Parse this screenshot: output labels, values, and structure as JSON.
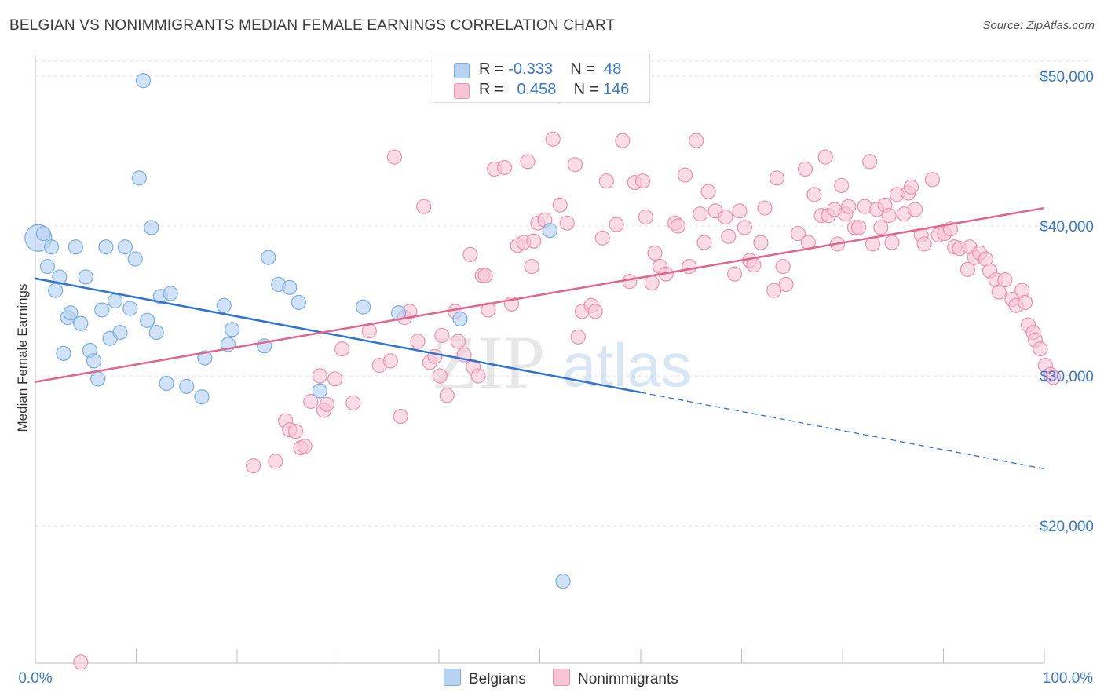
{
  "title": "BELGIAN VS NONIMMIGRANTS MEDIAN FEMALE EARNINGS CORRELATION CHART",
  "source": "Source: ZipAtlas.com",
  "watermark": {
    "zip": "ZIP",
    "atlas": "atlas"
  },
  "legend": {
    "r_label": "R =",
    "n_label": "N =",
    "belgians": {
      "r": "-0.333",
      "n": "48"
    },
    "nonimmigrants": {
      "r": "0.458",
      "n": "146"
    }
  },
  "colors": {
    "belgians_fill": "#b7d3f2",
    "belgians_stroke": "#7aaee0",
    "belgians_line": "#2f72d0",
    "nonimmigrants_fill": "#f7c5d5",
    "nonimmigrants_stroke": "#ec92b0",
    "nonimmigrants_line": "#e0668f",
    "axis_label": "#3a78c9",
    "grid": "#e3e3e3"
  },
  "chart_data": {
    "type": "scatter",
    "title": "BELGIAN VS NONIMMIGRANTS MEDIAN FEMALE EARNINGS CORRELATION CHART",
    "xlabel": "",
    "ylabel": "Median Female Earnings",
    "xlim": [
      0,
      100
    ],
    "ylim": [
      10000,
      51500
    ],
    "x_tick_labels": [
      "0.0%",
      "100.0%"
    ],
    "y_ticks": [
      20000,
      30000,
      40000,
      50000
    ],
    "y_tick_labels": [
      "$20,000",
      "$30,000",
      "$40,000",
      "$50,000"
    ],
    "grid": true,
    "legend_position": "top-center",
    "series": [
      {
        "name": "Belgians",
        "trend": {
          "x": [
            0,
            60
          ],
          "y": [
            36500,
            28900
          ],
          "dashed_to": [
            100,
            23800
          ]
        },
        "points": [
          [
            0.3,
            39200
          ],
          [
            0.8,
            39500
          ],
          [
            1.2,
            37300
          ],
          [
            1.6,
            38600
          ],
          [
            2,
            35700
          ],
          [
            2.4,
            36600
          ],
          [
            2.8,
            31500
          ],
          [
            3.2,
            33900
          ],
          [
            3.5,
            34200
          ],
          [
            4,
            38600
          ],
          [
            4.5,
            33500
          ],
          [
            5,
            36600
          ],
          [
            5.4,
            31700
          ],
          [
            5.8,
            31000
          ],
          [
            6.2,
            29800
          ],
          [
            6.6,
            34400
          ],
          [
            7,
            38600
          ],
          [
            7.4,
            32500
          ],
          [
            7.9,
            35000
          ],
          [
            8.4,
            32900
          ],
          [
            8.9,
            38600
          ],
          [
            9.4,
            34500
          ],
          [
            9.9,
            37800
          ],
          [
            10.3,
            43200
          ],
          [
            10.7,
            49700
          ],
          [
            11.1,
            33700
          ],
          [
            11.5,
            39900
          ],
          [
            12,
            32900
          ],
          [
            12.4,
            35300
          ],
          [
            13,
            29500
          ],
          [
            13.4,
            35500
          ],
          [
            15,
            29300
          ],
          [
            16.5,
            28600
          ],
          [
            16.8,
            31200
          ],
          [
            18.7,
            34700
          ],
          [
            19.1,
            32100
          ],
          [
            19.5,
            33100
          ],
          [
            22.7,
            32000
          ],
          [
            23.1,
            37900
          ],
          [
            24.1,
            36100
          ],
          [
            25.2,
            35900
          ],
          [
            26.1,
            34900
          ],
          [
            28.2,
            29000
          ],
          [
            32.5,
            34600
          ],
          [
            36,
            34200
          ],
          [
            42.1,
            33800
          ],
          [
            51,
            39700
          ],
          [
            52.3,
            16300
          ]
        ]
      },
      {
        "name": "Nonimmigrants",
        "trend": {
          "x": [
            0,
            100
          ],
          "y": [
            29600,
            41200
          ]
        },
        "points": [
          [
            4.5,
            10900
          ],
          [
            21.6,
            24000
          ],
          [
            23.8,
            24300
          ],
          [
            24.8,
            27000
          ],
          [
            25.2,
            26400
          ],
          [
            25.8,
            26300
          ],
          [
            26.3,
            25200
          ],
          [
            26.7,
            25300
          ],
          [
            27.3,
            28300
          ],
          [
            28.2,
            30000
          ],
          [
            28.6,
            27700
          ],
          [
            28.9,
            28100
          ],
          [
            29.7,
            29800
          ],
          [
            30.4,
            31800
          ],
          [
            31.5,
            28200
          ],
          [
            33.1,
            33000
          ],
          [
            34.1,
            30700
          ],
          [
            35.2,
            31000
          ],
          [
            35.6,
            44600
          ],
          [
            36.2,
            27300
          ],
          [
            36.6,
            33900
          ],
          [
            37.1,
            34300
          ],
          [
            37.9,
            32300
          ],
          [
            38.5,
            41300
          ],
          [
            39.1,
            30900
          ],
          [
            39.6,
            31300
          ],
          [
            40.1,
            30000
          ],
          [
            40.3,
            32700
          ],
          [
            40.8,
            28700
          ],
          [
            41.6,
            34300
          ],
          [
            41.9,
            32300
          ],
          [
            42.5,
            31400
          ],
          [
            43.1,
            38100
          ],
          [
            43.4,
            30600
          ],
          [
            43.9,
            30000
          ],
          [
            44.3,
            36700
          ],
          [
            44.6,
            36700
          ],
          [
            44.9,
            34400
          ],
          [
            45.5,
            43800
          ],
          [
            46.5,
            43900
          ],
          [
            47.2,
            34800
          ],
          [
            47.8,
            38700
          ],
          [
            48.4,
            38900
          ],
          [
            48.8,
            44300
          ],
          [
            49.2,
            37300
          ],
          [
            49.4,
            39000
          ],
          [
            49.8,
            40200
          ],
          [
            50.5,
            40400
          ],
          [
            51.3,
            45800
          ],
          [
            51.9,
            48700
          ],
          [
            52,
            41400
          ],
          [
            52.7,
            40200
          ],
          [
            53.5,
            44100
          ],
          [
            53.8,
            32600
          ],
          [
            54.2,
            34300
          ],
          [
            55.1,
            34700
          ],
          [
            55.5,
            34300
          ],
          [
            56.2,
            39200
          ],
          [
            56.6,
            43000
          ],
          [
            57.6,
            40100
          ],
          [
            58.2,
            45700
          ],
          [
            58.9,
            36300
          ],
          [
            59.4,
            42900
          ],
          [
            60.2,
            43000
          ],
          [
            60.5,
            40600
          ],
          [
            61.1,
            36200
          ],
          [
            61.4,
            38200
          ],
          [
            61.9,
            37300
          ],
          [
            62.5,
            36800
          ],
          [
            63.4,
            40200
          ],
          [
            63.7,
            40000
          ],
          [
            64.4,
            43400
          ],
          [
            64.8,
            37300
          ],
          [
            65.5,
            45700
          ],
          [
            65.9,
            40800
          ],
          [
            66.3,
            38900
          ],
          [
            66.7,
            42300
          ],
          [
            67.4,
            41000
          ],
          [
            68.4,
            40600
          ],
          [
            68.7,
            39300
          ],
          [
            69.3,
            36800
          ],
          [
            69.8,
            41000
          ],
          [
            70.3,
            39900
          ],
          [
            70.8,
            37700
          ],
          [
            71.2,
            37400
          ],
          [
            71.9,
            38900
          ],
          [
            72.3,
            41200
          ],
          [
            73.2,
            35700
          ],
          [
            73.5,
            43200
          ],
          [
            74.1,
            37300
          ],
          [
            74.4,
            36100
          ],
          [
            75.6,
            39500
          ],
          [
            76.3,
            43800
          ],
          [
            76.6,
            38900
          ],
          [
            77.2,
            42100
          ],
          [
            77.9,
            40700
          ],
          [
            78.3,
            44600
          ],
          [
            78.6,
            40700
          ],
          [
            79.2,
            41100
          ],
          [
            79.5,
            38800
          ],
          [
            79.9,
            42700
          ],
          [
            80.3,
            40800
          ],
          [
            80.6,
            41300
          ],
          [
            81.2,
            39900
          ],
          [
            81.6,
            39900
          ],
          [
            82.2,
            41300
          ],
          [
            82.7,
            44300
          ],
          [
            83,
            38800
          ],
          [
            83.4,
            41100
          ],
          [
            83.8,
            39900
          ],
          [
            84.2,
            41400
          ],
          [
            84.6,
            40700
          ],
          [
            84.9,
            38900
          ],
          [
            85.4,
            42100
          ],
          [
            86.1,
            40800
          ],
          [
            86.5,
            42200
          ],
          [
            86.8,
            42600
          ],
          [
            87.2,
            41100
          ],
          [
            87.8,
            39400
          ],
          [
            88.1,
            38800
          ],
          [
            88.9,
            43100
          ],
          [
            89.5,
            39400
          ],
          [
            90.1,
            39500
          ],
          [
            90.7,
            39800
          ],
          [
            91.1,
            38600
          ],
          [
            91.6,
            38500
          ],
          [
            92.4,
            37100
          ],
          [
            92.6,
            38600
          ],
          [
            93.1,
            37900
          ],
          [
            93.6,
            38200
          ],
          [
            94.2,
            37800
          ],
          [
            94.6,
            37000
          ],
          [
            95.2,
            36400
          ],
          [
            95.5,
            35600
          ],
          [
            96.1,
            36400
          ],
          [
            96.8,
            35100
          ],
          [
            97.2,
            34700
          ],
          [
            97.8,
            35700
          ],
          [
            98.1,
            34900
          ],
          [
            98.4,
            33400
          ],
          [
            98.9,
            32900
          ],
          [
            99.1,
            32400
          ],
          [
            99.6,
            31800
          ],
          [
            100.1,
            30700
          ],
          [
            100.6,
            30100
          ],
          [
            100.9,
            29900
          ]
        ]
      }
    ]
  }
}
